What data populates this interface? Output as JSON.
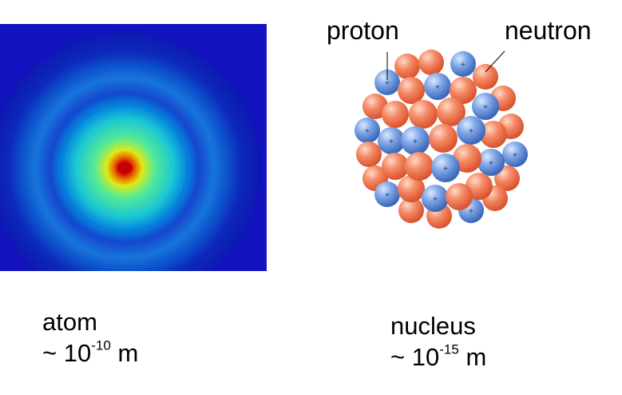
{
  "labels": {
    "proton": "proton",
    "neutron": "neutron"
  },
  "atom_caption": {
    "name": "atom",
    "prefix": "~ 10",
    "exponent": "-10",
    "unit": " m"
  },
  "nucleus_caption": {
    "name": "nucleus",
    "prefix": "~ 10",
    "exponent": "-15",
    "unit": " m"
  },
  "colors": {
    "atom_background": "#1515c8",
    "proton_blue": "#5b8fd6",
    "neutron_orange": "#f08060"
  }
}
